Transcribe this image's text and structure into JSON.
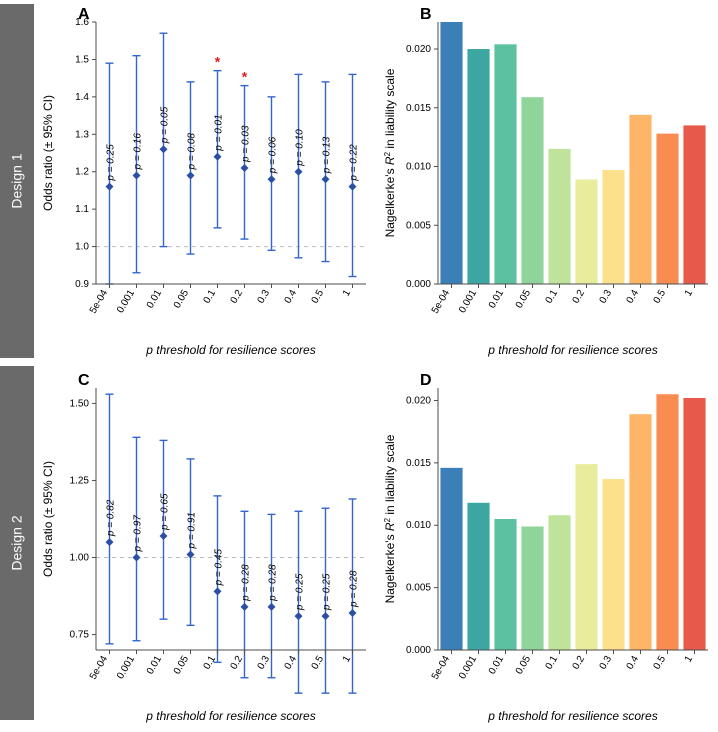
{
  "sidelabels": [
    "Design 1",
    "Design 2"
  ],
  "corners": [
    "A",
    "B",
    "C",
    "D"
  ],
  "x_categories": [
    "5e-04",
    "0.001",
    "0.01",
    "0.05",
    "0.1",
    "0.2",
    "0.3",
    "0.4",
    "0.5",
    "1"
  ],
  "x_axis_label": "p threshold for resilience scores",
  "y_label_forest": "Odds ratio (± 95% CI)",
  "y_label_bar": "Nagelkerke's R² in liability scale",
  "bar_colors": [
    "#3b7fb8",
    "#3ca7a1",
    "#5cc1a0",
    "#8fd49a",
    "#bfe39a",
    "#e8ed9d",
    "#fde08b",
    "#fdb567",
    "#f88c51",
    "#e75948"
  ],
  "point_color": "#2c4fa5",
  "err_color": "#3366cc",
  "refline_color": "#bdbdbd",
  "axis_color": "#4d4d4d",
  "star_categories_A": [
    "0.1",
    "0.2"
  ],
  "panel_A": {
    "ylim": [
      0.9,
      1.6
    ],
    "yticks": [
      0.9,
      1.0,
      1.1,
      1.2,
      1.3,
      1.4,
      1.5,
      1.6
    ],
    "refline": 1.0,
    "points": [
      {
        "or": 1.16,
        "lo": 0.9,
        "hi": 1.49,
        "p": "p = 0.25"
      },
      {
        "or": 1.19,
        "lo": 0.93,
        "hi": 1.51,
        "p": "p = 0.16"
      },
      {
        "or": 1.26,
        "lo": 1.0,
        "hi": 1.57,
        "p": "p = 0.05"
      },
      {
        "or": 1.19,
        "lo": 0.98,
        "hi": 1.44,
        "p": "p = 0.08"
      },
      {
        "or": 1.24,
        "lo": 1.05,
        "hi": 1.47,
        "p": "p = 0.01"
      },
      {
        "or": 1.21,
        "lo": 1.02,
        "hi": 1.43,
        "p": "p = 0.03"
      },
      {
        "or": 1.18,
        "lo": 0.99,
        "hi": 1.4,
        "p": "p = 0.06"
      },
      {
        "or": 1.2,
        "lo": 0.97,
        "hi": 1.46,
        "p": "p = 0.10"
      },
      {
        "or": 1.18,
        "lo": 0.96,
        "hi": 1.44,
        "p": "p = 0.13"
      },
      {
        "or": 1.16,
        "lo": 0.92,
        "hi": 1.46,
        "p": "p = 0.22"
      }
    ]
  },
  "panel_C": {
    "ylim": [
      0.7,
      1.55
    ],
    "yticks": [
      0.75,
      1.0,
      1.25,
      1.5
    ],
    "refline": 1.0,
    "points": [
      {
        "or": 1.05,
        "lo": 0.72,
        "hi": 1.53,
        "p": "p = 0.82"
      },
      {
        "or": 1.0,
        "lo": 0.73,
        "hi": 1.39,
        "p": "p = 0.97"
      },
      {
        "or": 1.07,
        "lo": 0.8,
        "hi": 1.38,
        "p": "p = 0.65"
      },
      {
        "or": 1.01,
        "lo": 0.78,
        "hi": 1.32,
        "p": "p = 0.91"
      },
      {
        "or": 0.89,
        "lo": 0.66,
        "hi": 1.2,
        "p": "p = 0.45"
      },
      {
        "or": 0.84,
        "lo": 0.61,
        "hi": 1.15,
        "p": "p = 0.28"
      },
      {
        "or": 0.84,
        "lo": 0.61,
        "hi": 1.14,
        "p": "p = 0.28"
      },
      {
        "or": 0.81,
        "lo": 0.56,
        "hi": 1.15,
        "p": "p = 0.25"
      },
      {
        "or": 0.81,
        "lo": 0.56,
        "hi": 1.16,
        "p": "p = 0.25"
      },
      {
        "or": 0.82,
        "lo": 0.56,
        "hi": 1.19,
        "p": "p = 0.28"
      }
    ]
  },
  "panel_B": {
    "ylim": [
      0,
      0.022
    ],
    "yticks": [
      0.0,
      0.005,
      0.01,
      0.015,
      0.02
    ],
    "values": [
      0.0223,
      0.02,
      0.0204,
      0.0159,
      0.0115,
      0.0089,
      0.0097,
      0.0144,
      0.0128,
      0.0135
    ]
  },
  "panel_D": {
    "ylim": [
      0,
      0.021
    ],
    "yticks": [
      0.0,
      0.005,
      0.01,
      0.015,
      0.02
    ],
    "values": [
      0.0146,
      0.0118,
      0.0105,
      0.0099,
      0.0108,
      0.0149,
      0.0137,
      0.0189,
      0.0205,
      0.0202
    ]
  }
}
